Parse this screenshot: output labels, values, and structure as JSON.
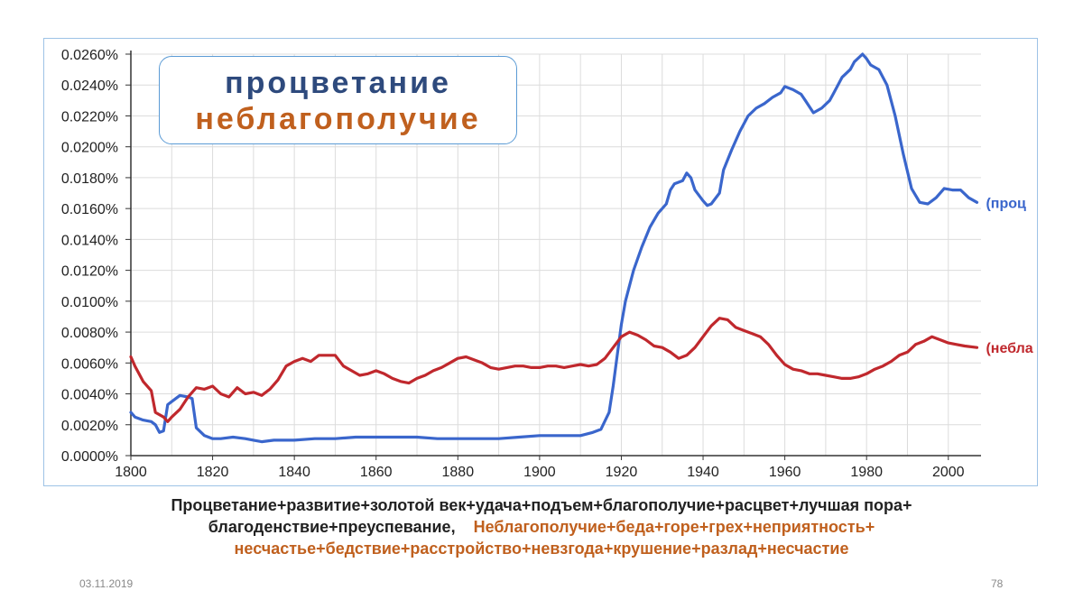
{
  "legend": {
    "line1": "процветание",
    "line2": "неблагополучие"
  },
  "caption": {
    "part1_line1": "Процветание+развитие+золотой век+удача+подъем+благополучие+расцвет+лучшая пора+",
    "part1_line2": "благоденствие+преуспевание,",
    "part2_line2": "Неблагополучие+беда+горе+грех+неприятность+",
    "part2_line3": "несчастье+бедствие+расстройство+невзгода+крушение+разлад+несчастие"
  },
  "footer": {
    "date": "03.11.2019",
    "page": "78"
  },
  "chart_data": {
    "type": "line",
    "xlim": [
      1800,
      2008
    ],
    "ylim": [
      0,
      0.026
    ],
    "x_ticks": [
      1800,
      1820,
      1840,
      1860,
      1880,
      1900,
      1920,
      1940,
      1960,
      1980,
      2000
    ],
    "x_tick_labels": [
      "1800",
      "1820",
      "1840",
      "1860",
      "1880",
      "1900",
      "1920",
      "1940",
      "1960",
      "1980",
      "2000"
    ],
    "y_ticks": [
      0,
      0.002,
      0.004,
      0.006,
      0.008,
      0.01,
      0.012,
      0.014,
      0.016,
      0.018,
      0.02,
      0.022,
      0.024,
      0.026
    ],
    "y_tick_labels": [
      "0.0000%",
      "0.0020%",
      "0.0040%",
      "0.0060%",
      "0.0080%",
      "0.0100%",
      "0.0120%",
      "0.0140%",
      "0.0160%",
      "0.0180%",
      "0.0200%",
      "0.0220%",
      "0.0240%",
      "0.0260%"
    ],
    "grid": true,
    "series": [
      {
        "name": "(проц",
        "color": "#3a66cc",
        "points": [
          [
            1800,
            0.0028
          ],
          [
            1801,
            0.0025
          ],
          [
            1803,
            0.0023
          ],
          [
            1805,
            0.0022
          ],
          [
            1806,
            0.002
          ],
          [
            1807,
            0.0015
          ],
          [
            1808,
            0.0016
          ],
          [
            1809,
            0.0033
          ],
          [
            1811,
            0.0037
          ],
          [
            1812,
            0.0039
          ],
          [
            1814,
            0.0038
          ],
          [
            1815,
            0.0037
          ],
          [
            1816,
            0.0018
          ],
          [
            1818,
            0.0013
          ],
          [
            1820,
            0.0011
          ],
          [
            1822,
            0.0011
          ],
          [
            1825,
            0.0012
          ],
          [
            1828,
            0.0011
          ],
          [
            1830,
            0.001
          ],
          [
            1832,
            0.0009
          ],
          [
            1835,
            0.001
          ],
          [
            1840,
            0.001
          ],
          [
            1845,
            0.0011
          ],
          [
            1850,
            0.0011
          ],
          [
            1855,
            0.0012
          ],
          [
            1860,
            0.0012
          ],
          [
            1865,
            0.0012
          ],
          [
            1870,
            0.0012
          ],
          [
            1875,
            0.0011
          ],
          [
            1880,
            0.0011
          ],
          [
            1885,
            0.0011
          ],
          [
            1890,
            0.0011
          ],
          [
            1895,
            0.0012
          ],
          [
            1900,
            0.0013
          ],
          [
            1905,
            0.0013
          ],
          [
            1910,
            0.0013
          ],
          [
            1913,
            0.0015
          ],
          [
            1915,
            0.0017
          ],
          [
            1917,
            0.0028
          ],
          [
            1918,
            0.0045
          ],
          [
            1919,
            0.0065
          ],
          [
            1920,
            0.0085
          ],
          [
            1921,
            0.01
          ],
          [
            1922,
            0.011
          ],
          [
            1923,
            0.012
          ],
          [
            1925,
            0.0135
          ],
          [
            1927,
            0.0148
          ],
          [
            1929,
            0.0157
          ],
          [
            1931,
            0.0163
          ],
          [
            1932,
            0.0172
          ],
          [
            1933,
            0.0176
          ],
          [
            1935,
            0.0178
          ],
          [
            1936,
            0.0183
          ],
          [
            1937,
            0.018
          ],
          [
            1938,
            0.0172
          ],
          [
            1940,
            0.0165
          ],
          [
            1941,
            0.0162
          ],
          [
            1942,
            0.0163
          ],
          [
            1944,
            0.017
          ],
          [
            1945,
            0.0185
          ],
          [
            1947,
            0.0198
          ],
          [
            1949,
            0.021
          ],
          [
            1951,
            0.022
          ],
          [
            1953,
            0.0225
          ],
          [
            1955,
            0.0228
          ],
          [
            1957,
            0.0232
          ],
          [
            1959,
            0.0235
          ],
          [
            1960,
            0.0239
          ],
          [
            1962,
            0.0237
          ],
          [
            1964,
            0.0234
          ],
          [
            1965,
            0.023
          ],
          [
            1967,
            0.0222
          ],
          [
            1969,
            0.0225
          ],
          [
            1971,
            0.023
          ],
          [
            1972,
            0.0235
          ],
          [
            1974,
            0.0245
          ],
          [
            1976,
            0.025
          ],
          [
            1977,
            0.0255
          ],
          [
            1979,
            0.026
          ],
          [
            1980,
            0.0257
          ],
          [
            1981,
            0.0253
          ],
          [
            1983,
            0.025
          ],
          [
            1985,
            0.024
          ],
          [
            1987,
            0.022
          ],
          [
            1989,
            0.0195
          ],
          [
            1991,
            0.0173
          ],
          [
            1993,
            0.0164
          ],
          [
            1995,
            0.0163
          ],
          [
            1997,
            0.0167
          ],
          [
            1999,
            0.0173
          ],
          [
            2001,
            0.0172
          ],
          [
            2003,
            0.0172
          ],
          [
            2005,
            0.0167
          ],
          [
            2007,
            0.0164
          ]
        ]
      },
      {
        "name": "(небла",
        "color": "#c0282d",
        "points": [
          [
            1800,
            0.0064
          ],
          [
            1801,
            0.0058
          ],
          [
            1803,
            0.0048
          ],
          [
            1805,
            0.0042
          ],
          [
            1806,
            0.0028
          ],
          [
            1808,
            0.0025
          ],
          [
            1809,
            0.0022
          ],
          [
            1810,
            0.0025
          ],
          [
            1812,
            0.003
          ],
          [
            1814,
            0.0038
          ],
          [
            1816,
            0.0044
          ],
          [
            1818,
            0.0043
          ],
          [
            1820,
            0.0045
          ],
          [
            1822,
            0.004
          ],
          [
            1824,
            0.0038
          ],
          [
            1826,
            0.0044
          ],
          [
            1828,
            0.004
          ],
          [
            1830,
            0.0041
          ],
          [
            1832,
            0.0039
          ],
          [
            1834,
            0.0043
          ],
          [
            1836,
            0.0049
          ],
          [
            1838,
            0.0058
          ],
          [
            1840,
            0.0061
          ],
          [
            1842,
            0.0063
          ],
          [
            1844,
            0.0061
          ],
          [
            1846,
            0.0065
          ],
          [
            1848,
            0.0065
          ],
          [
            1850,
            0.0065
          ],
          [
            1852,
            0.0058
          ],
          [
            1854,
            0.0055
          ],
          [
            1856,
            0.0052
          ],
          [
            1858,
            0.0053
          ],
          [
            1860,
            0.0055
          ],
          [
            1862,
            0.0053
          ],
          [
            1864,
            0.005
          ],
          [
            1866,
            0.0048
          ],
          [
            1868,
            0.0047
          ],
          [
            1870,
            0.005
          ],
          [
            1872,
            0.0052
          ],
          [
            1874,
            0.0055
          ],
          [
            1876,
            0.0057
          ],
          [
            1878,
            0.006
          ],
          [
            1880,
            0.0063
          ],
          [
            1882,
            0.0064
          ],
          [
            1884,
            0.0062
          ],
          [
            1886,
            0.006
          ],
          [
            1888,
            0.0057
          ],
          [
            1890,
            0.0056
          ],
          [
            1892,
            0.0057
          ],
          [
            1894,
            0.0058
          ],
          [
            1896,
            0.0058
          ],
          [
            1898,
            0.0057
          ],
          [
            1900,
            0.0057
          ],
          [
            1902,
            0.0058
          ],
          [
            1904,
            0.0058
          ],
          [
            1906,
            0.0057
          ],
          [
            1908,
            0.0058
          ],
          [
            1910,
            0.0059
          ],
          [
            1912,
            0.0058
          ],
          [
            1914,
            0.0059
          ],
          [
            1916,
            0.0063
          ],
          [
            1918,
            0.007
          ],
          [
            1920,
            0.0077
          ],
          [
            1922,
            0.008
          ],
          [
            1924,
            0.0078
          ],
          [
            1926,
            0.0075
          ],
          [
            1928,
            0.0071
          ],
          [
            1930,
            0.007
          ],
          [
            1932,
            0.0067
          ],
          [
            1934,
            0.0063
          ],
          [
            1936,
            0.0065
          ],
          [
            1938,
            0.007
          ],
          [
            1940,
            0.0077
          ],
          [
            1942,
            0.0084
          ],
          [
            1944,
            0.0089
          ],
          [
            1946,
            0.0088
          ],
          [
            1948,
            0.0083
          ],
          [
            1950,
            0.0081
          ],
          [
            1952,
            0.0079
          ],
          [
            1954,
            0.0077
          ],
          [
            1956,
            0.0072
          ],
          [
            1958,
            0.0065
          ],
          [
            1960,
            0.0059
          ],
          [
            1962,
            0.0056
          ],
          [
            1964,
            0.0055
          ],
          [
            1966,
            0.0053
          ],
          [
            1968,
            0.0053
          ],
          [
            1970,
            0.0052
          ],
          [
            1972,
            0.0051
          ],
          [
            1974,
            0.005
          ],
          [
            1976,
            0.005
          ],
          [
            1978,
            0.0051
          ],
          [
            1980,
            0.0053
          ],
          [
            1982,
            0.0056
          ],
          [
            1984,
            0.0058
          ],
          [
            1986,
            0.0061
          ],
          [
            1988,
            0.0065
          ],
          [
            1990,
            0.0067
          ],
          [
            1992,
            0.0072
          ],
          [
            1994,
            0.0074
          ],
          [
            1996,
            0.0077
          ],
          [
            1998,
            0.0075
          ],
          [
            2000,
            0.0073
          ],
          [
            2002,
            0.0072
          ],
          [
            2004,
            0.0071
          ],
          [
            2007,
            0.007
          ]
        ]
      }
    ]
  }
}
